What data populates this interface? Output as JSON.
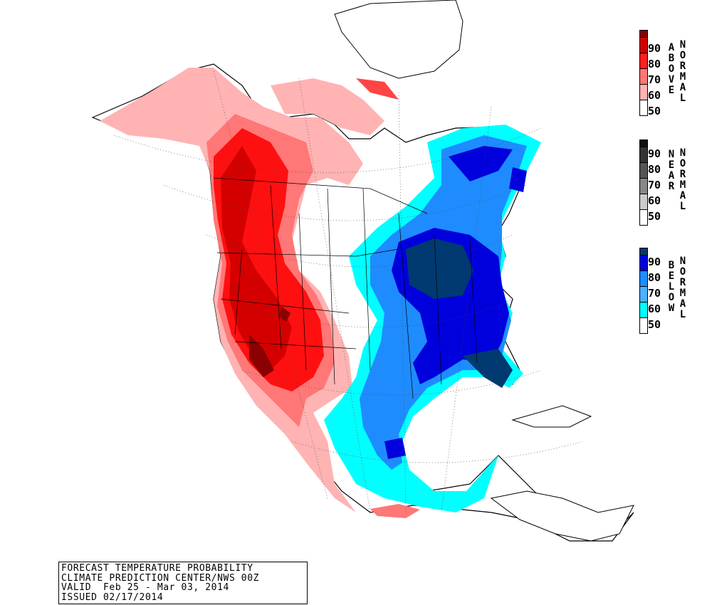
{
  "map": {
    "region": "North America",
    "colors": {
      "above": [
        "#ffb3b3",
        "#ff7777",
        "#ff0000",
        "#d40000",
        "#8b0000"
      ],
      "near": [
        "#cccccc",
        "#999999",
        "#666666",
        "#333333",
        "#111111"
      ],
      "below": [
        "#00ffff",
        "#1e90ff",
        "#0000ff",
        "#0000b0",
        "#003366"
      ],
      "land": "#ffffff",
      "lines": "#000000"
    }
  },
  "legends": [
    {
      "category": "ABOVE",
      "side_label": "NORMAL",
      "ticks": [
        "90",
        "80",
        "70",
        "60",
        "50"
      ],
      "swatches": [
        "#8b0000",
        "#d40000",
        "#ff2020",
        "#ff7777",
        "#ffb3b3",
        "#ffffff"
      ]
    },
    {
      "category": "NEAR",
      "side_label": "NORMAL",
      "ticks": [
        "90",
        "80",
        "70",
        "60",
        "50"
      ],
      "swatches": [
        "#111111",
        "#333333",
        "#555555",
        "#888888",
        "#cccccc",
        "#ffffff"
      ]
    },
    {
      "category": "BELOW",
      "side_label": "NORMAL",
      "ticks": [
        "90",
        "80",
        "70",
        "60",
        "50"
      ],
      "swatches": [
        "#003a70",
        "#0000dd",
        "#1e8cff",
        "#4fb0ff",
        "#00ffff",
        "#ffffff"
      ]
    }
  ],
  "info": {
    "line1": "FORECAST TEMPERATURE PROBABILITY",
    "line2": "CLIMATE PREDICTION CENTER/NWS 00Z",
    "line3": "VALID  Feb 25 - Mar 03, 2014",
    "line4": "ISSUED 02/17/2014"
  }
}
